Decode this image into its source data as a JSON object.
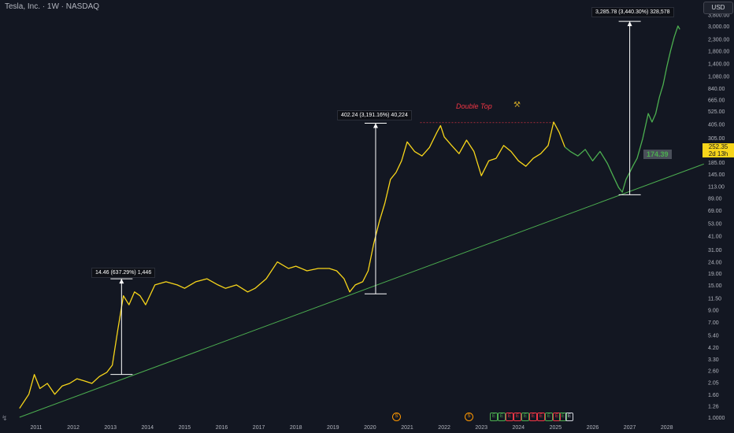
{
  "header": {
    "title": "Tesla, Inc. · 1W · NASDAQ"
  },
  "currency": "USD",
  "current_price": {
    "price": "252.35",
    "countdown": "2d 13h"
  },
  "annotations": {
    "measure_2013": "14.46 (637.29%) 1,446",
    "measure_2020": "402.24 (3,191.16%) 40,224",
    "measure_projection": "3,285.78 (3,440.30%) 328,578",
    "pattern": "Double Top",
    "projection_target": "174.39"
  },
  "events": {
    "dividend_marks": [
      "S",
      "S"
    ],
    "earnings_marks": [
      "E",
      "E",
      "E",
      "E",
      "E",
      "E",
      "E",
      "E",
      "E",
      "E",
      "E"
    ]
  },
  "chart_data": {
    "type": "line",
    "title": "Tesla, Inc. · 1W · NASDAQ",
    "xlabel": "",
    "ylabel": "",
    "y_scale": "log",
    "ylim": [
      0.95,
      3800
    ],
    "x_ticks": [
      "2011",
      "2012",
      "2013",
      "2014",
      "2015",
      "2016",
      "2017",
      "2018",
      "2019",
      "2020",
      "2021",
      "2022",
      "2023",
      "2024",
      "2025",
      "2026",
      "2027",
      "2028"
    ],
    "y_ticks": [
      "3,800.00",
      "3,000.00",
      "2,300.00",
      "1,800.00",
      "1,400.00",
      "1,080.00",
      "840.00",
      "665.00",
      "525.00",
      "405.00",
      "305.00",
      "235.00",
      "185.00",
      "145.00",
      "113.00",
      "89.00",
      "69.00",
      "53.00",
      "41.00",
      "31.00",
      "24.00",
      "19.00",
      "15.00",
      "11.50",
      "9.00",
      "7.00",
      "5.40",
      "4.20",
      "3.30",
      "2.60",
      "2.05",
      "1.60",
      "1.26",
      "1.0000"
    ],
    "grid": false,
    "series": [
      {
        "name": "",
        "color": "#f7d51a",
        "x": [
          2010.55,
          2010.8,
          2010.95,
          2011.1,
          2011.3,
          2011.5,
          2011.7,
          2011.9,
          2012.1,
          2012.3,
          2012.5,
          2012.7,
          2012.9,
          2013.05,
          2013.2,
          2013.35,
          2013.5,
          2013.65,
          2013.8,
          2013.95,
          2014.2,
          2014.5,
          2014.8,
          2015.0,
          2015.3,
          2015.6,
          2015.9,
          2016.1,
          2016.4,
          2016.7,
          2016.9,
          2017.2,
          2017.5,
          2017.8,
          2018.0,
          2018.3,
          2018.6,
          2018.9,
          2019.1,
          2019.3,
          2019.45,
          2019.6,
          2019.8,
          2019.95,
          2020.1,
          2020.25,
          2020.4,
          2020.55,
          2020.7,
          2020.85,
          2021.0,
          2021.2,
          2021.4,
          2021.6,
          2021.8,
          2021.9,
          2022.0,
          2022.2,
          2022.4,
          2022.6,
          2022.8,
          2023.0,
          2023.2,
          2023.4,
          2023.6,
          2023.8,
          2024.0,
          2024.2,
          2024.4,
          2024.6,
          2024.8,
          2024.95,
          2025.1,
          2025.25
        ],
        "y": [
          1.2,
          1.6,
          2.4,
          1.8,
          2.0,
          1.6,
          1.9,
          2.0,
          2.2,
          2.1,
          2.0,
          2.3,
          2.5,
          2.9,
          6.0,
          12.0,
          10.0,
          13.0,
          12.0,
          10.0,
          15.0,
          16.0,
          15.0,
          14.0,
          16.0,
          17.0,
          15.0,
          14.0,
          15.0,
          13.0,
          14.0,
          17.0,
          24.0,
          21.0,
          22.0,
          20.0,
          21.0,
          21.0,
          20.0,
          17.0,
          13.0,
          15.0,
          16.0,
          20.0,
          35.0,
          55.0,
          80.0,
          130.0,
          150.0,
          190.0,
          280.0,
          230.0,
          210.0,
          250.0,
          340.0,
          390.0,
          310.0,
          260.0,
          220.0,
          290.0,
          230.0,
          140.0,
          190.0,
          200.0,
          260.0,
          230.0,
          190.0,
          170.0,
          200.0,
          220.0,
          260.0,
          420.0,
          340.0,
          252.35
        ]
      },
      {
        "name": "",
        "color": "#4caf50",
        "x": [
          2025.25,
          2025.4,
          2025.6,
          2025.8,
          2026.0,
          2026.2,
          2026.4,
          2026.55,
          2026.7,
          2026.8,
          2026.9,
          2027.0,
          2027.1,
          2027.2,
          2027.35,
          2027.5,
          2027.6,
          2027.7,
          2027.8,
          2027.9,
          2028.0,
          2028.1,
          2028.2,
          2028.3,
          2028.35
        ],
        "y": [
          252.35,
          230.0,
          210.0,
          240.0,
          190.0,
          230.0,
          180.0,
          140.0,
          110.0,
          100.0,
          130.0,
          150.0,
          174.39,
          200.0,
          300.0,
          500.0,
          420.0,
          500.0,
          700.0,
          900.0,
          1300.0,
          1800.0,
          2400.0,
          3000.0,
          2800.0
        ]
      },
      {
        "name": "",
        "color": "#4caf50",
        "x": [
          2010.55,
          2029.0
        ],
        "y": [
          1.0,
          178.0
        ]
      }
    ],
    "measurements": [
      {
        "x": 2013.3,
        "from": 2.4,
        "to": 17.0
      },
      {
        "x": 2020.15,
        "from": 12.5,
        "to": 410.0
      },
      {
        "x": 2027.0,
        "from": 95.0,
        "to": 3300.0
      }
    ],
    "double_top_level": 415
  }
}
